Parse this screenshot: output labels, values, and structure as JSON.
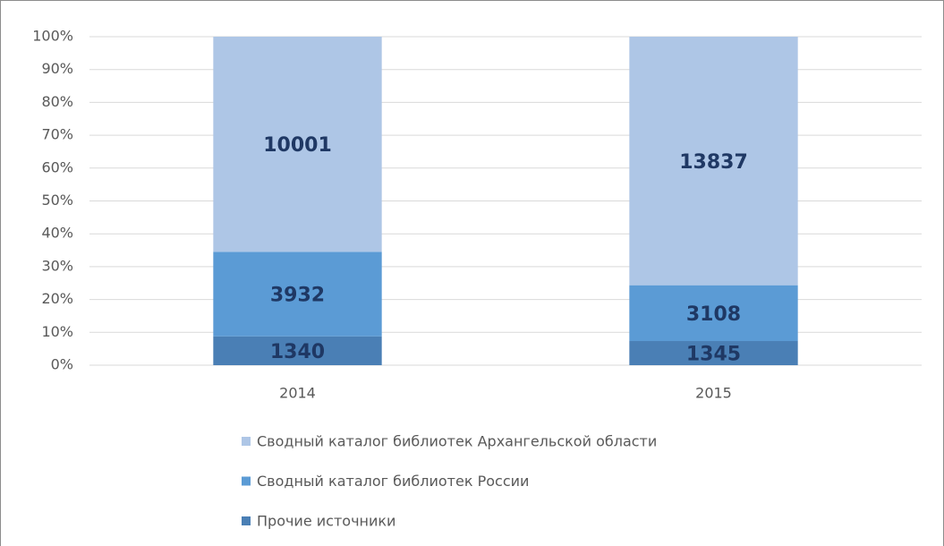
{
  "chart_data": {
    "type": "bar",
    "stacking": "percent",
    "categories": [
      "2014",
      "2015"
    ],
    "series": [
      {
        "name": "Прочие источники",
        "color": "#4a7fb5",
        "values": [
          1340,
          1345
        ]
      },
      {
        "name": "Сводный каталог библиотек России",
        "color": "#5b9bd5",
        "values": [
          3932,
          3108
        ]
      },
      {
        "name": "Сводный каталог библиотек Архангельской области",
        "color": "#aec6e6",
        "values": [
          10001,
          13837
        ]
      }
    ],
    "ylim": [
      0,
      100
    ],
    "yticks": [
      {
        "value": 0,
        "label": "0%"
      },
      {
        "value": 10,
        "label": "10%"
      },
      {
        "value": 20,
        "label": "20%"
      },
      {
        "value": 30,
        "label": "30%"
      },
      {
        "value": 40,
        "label": "40%"
      },
      {
        "value": 50,
        "label": "50%"
      },
      {
        "value": 60,
        "label": "60%"
      },
      {
        "value": 70,
        "label": "70%"
      },
      {
        "value": 80,
        "label": "80%"
      },
      {
        "value": 90,
        "label": "90%"
      },
      {
        "value": 100,
        "label": "100%"
      }
    ],
    "grid": true,
    "legend": "bottom"
  }
}
